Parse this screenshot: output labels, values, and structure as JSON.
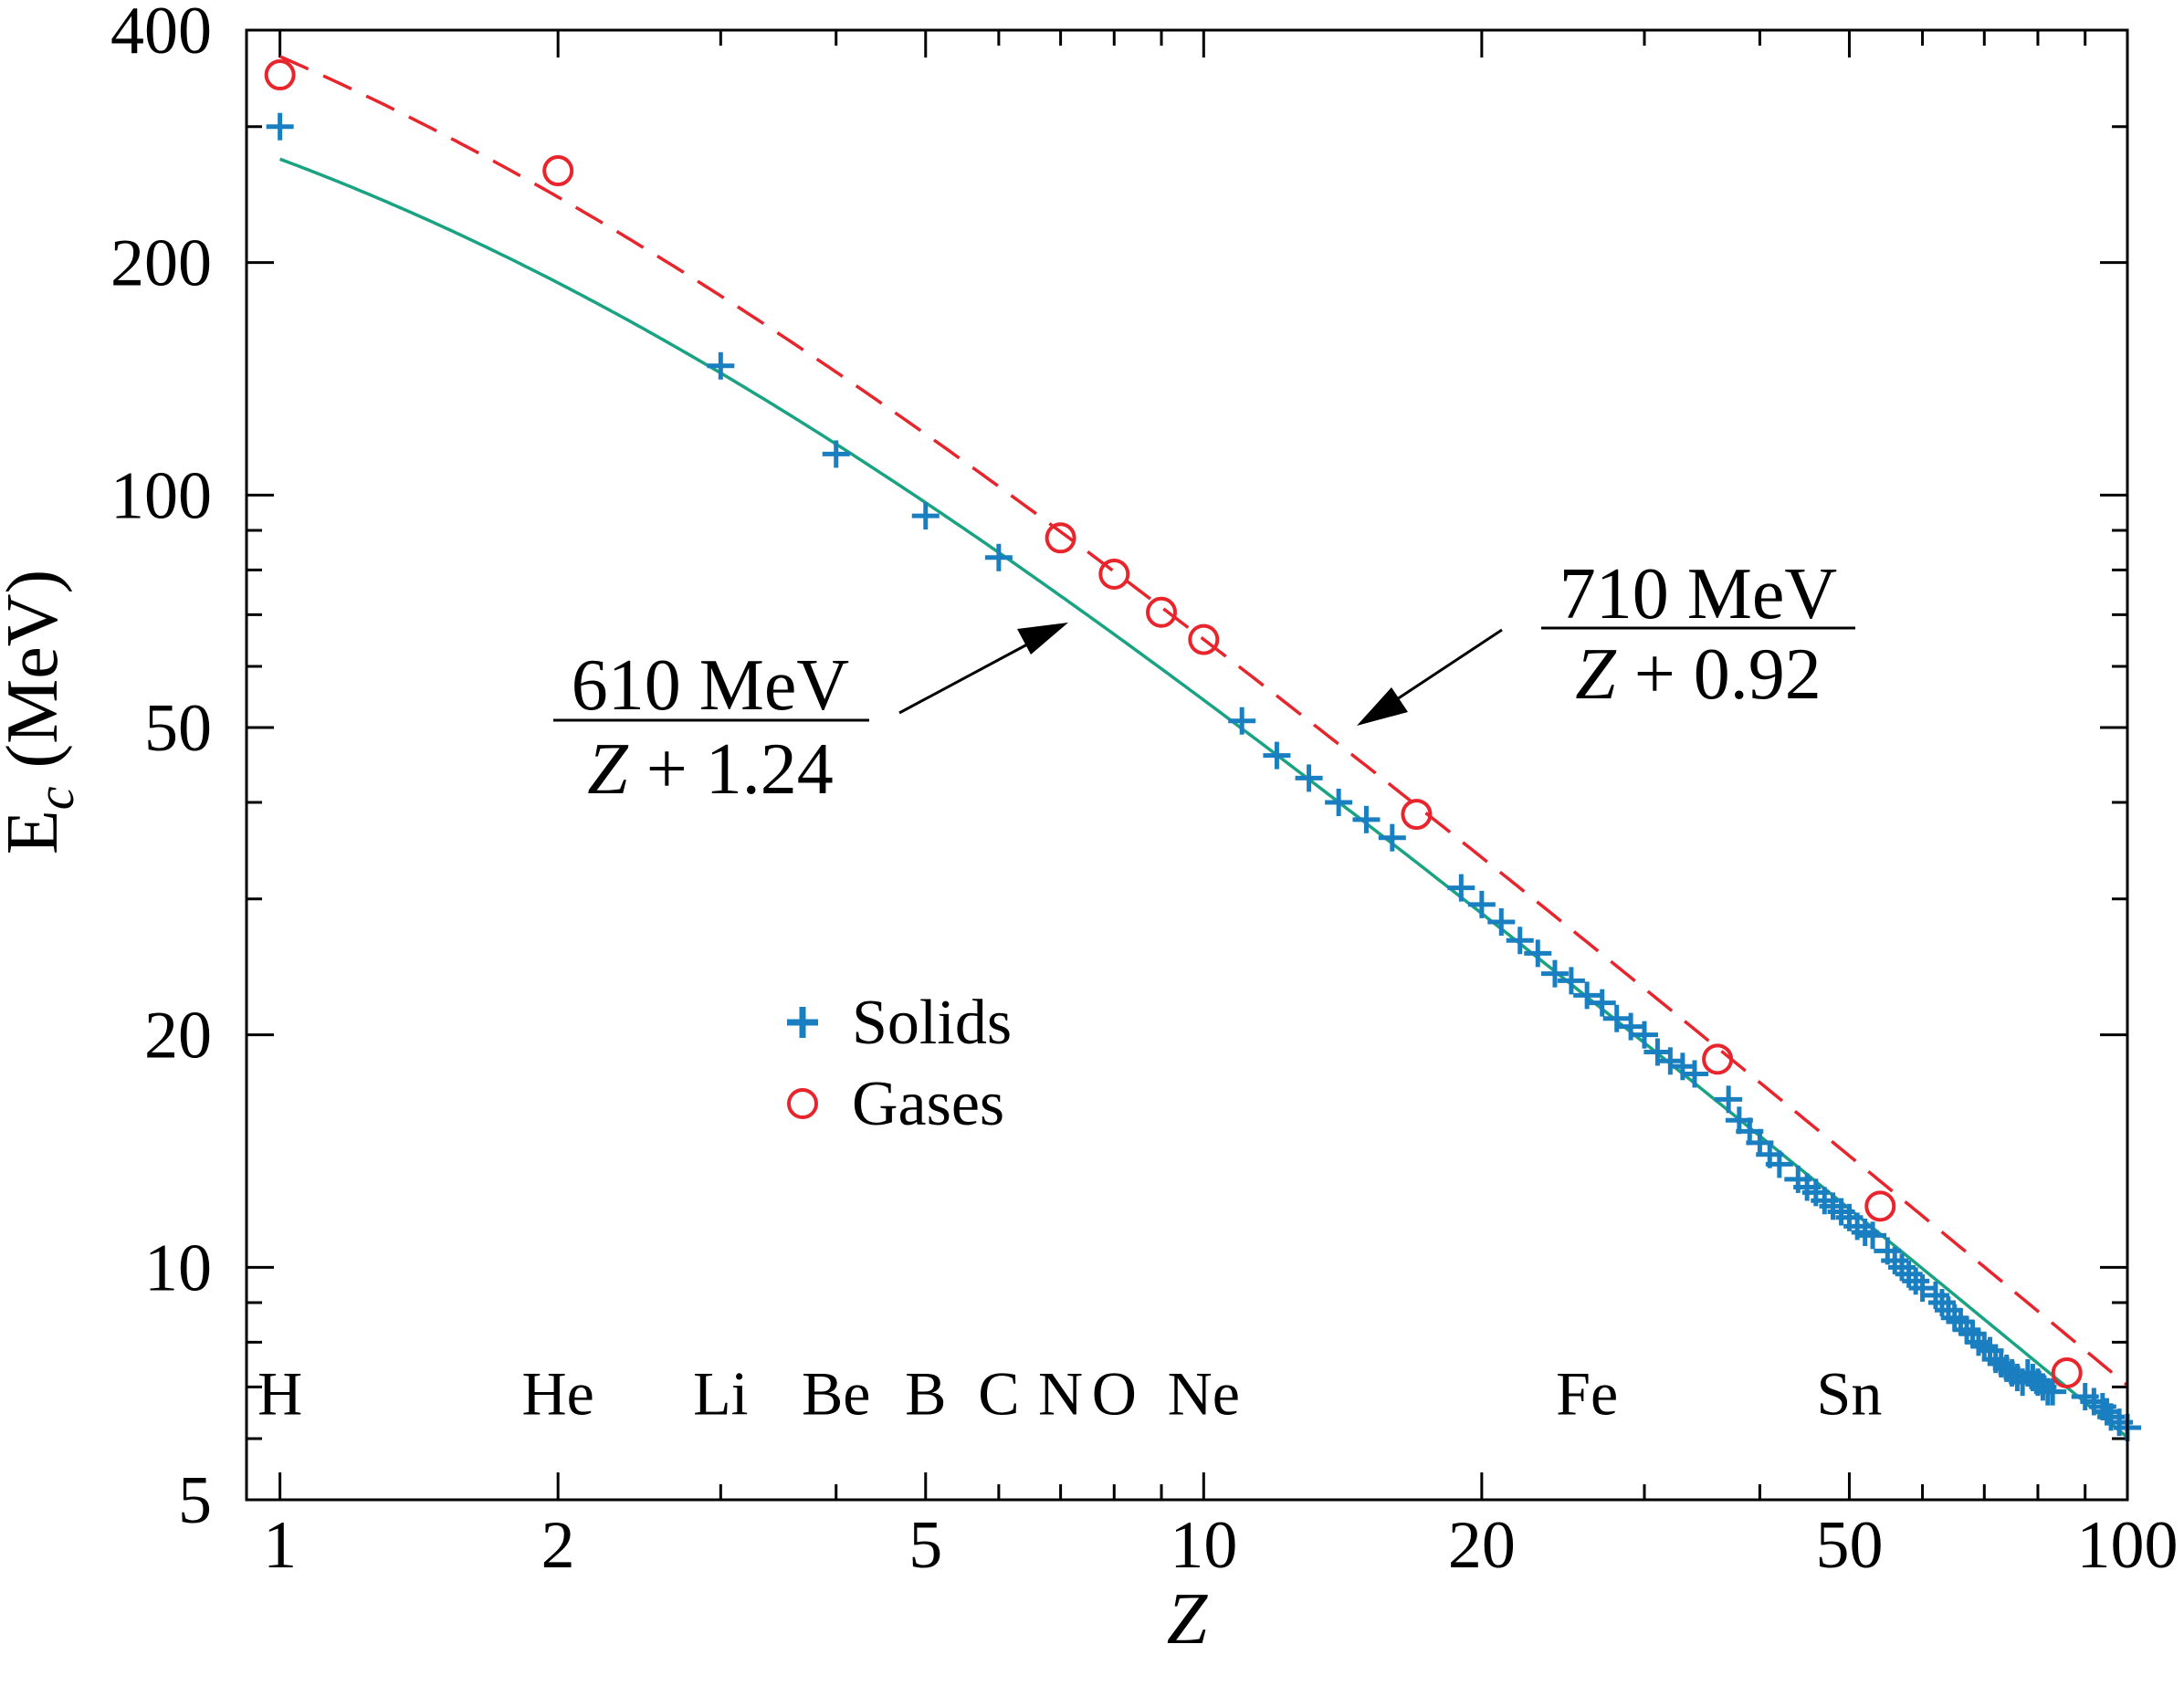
{
  "chart_data": {
    "type": "scatter",
    "xscale": "log",
    "yscale": "log",
    "xlim": [
      0.92,
      100
    ],
    "ylim": [
      5,
      400
    ],
    "xlabel": "Z",
    "ylabel": "E",
    "ylabel_sub": "c",
    "ylabel_unit": " (MeV)",
    "xticks": [
      {
        "value": 1,
        "label": "1"
      },
      {
        "value": 2,
        "label": "2"
      },
      {
        "value": 5,
        "label": "5"
      },
      {
        "value": 10,
        "label": "10"
      },
      {
        "value": 20,
        "label": "20"
      },
      {
        "value": 50,
        "label": "50"
      },
      {
        "value": 100,
        "label": "100"
      }
    ],
    "yticks": [
      {
        "value": 5,
        "label": "5"
      },
      {
        "value": 10,
        "label": "10"
      },
      {
        "value": 20,
        "label": "20"
      },
      {
        "value": 50,
        "label": "50"
      },
      {
        "value": 100,
        "label": "100"
      },
      {
        "value": 200,
        "label": "200"
      },
      {
        "value": 400,
        "label": "400"
      }
    ],
    "element_labels": [
      {
        "z": 1,
        "label": "H"
      },
      {
        "z": 2,
        "label": "He"
      },
      {
        "z": 3,
        "label": "Li"
      },
      {
        "z": 4,
        "label": "Be"
      },
      {
        "z": 5,
        "label": "B"
      },
      {
        "z": 6,
        "label": "C"
      },
      {
        "z": 7,
        "label": "N"
      },
      {
        "z": 8,
        "label": "O"
      },
      {
        "z": 10,
        "label": "Ne"
      },
      {
        "z": 26,
        "label": "Fe"
      },
      {
        "z": 50,
        "label": "Sn"
      }
    ],
    "element_label_y": 6.9,
    "fits": [
      {
        "name": "gases-fit",
        "numerator": 710,
        "offset": 0.92,
        "color": "#e8252c",
        "style": "dashed"
      },
      {
        "name": "solids-fit",
        "numerator": 610,
        "offset": 1.24,
        "color": "#1aa383",
        "style": "solid"
      }
    ],
    "series": [
      {
        "name": "Solids",
        "marker": "plus",
        "color": "#1a7fc1",
        "points": [
          [
            1,
            300
          ],
          [
            3,
            147
          ],
          [
            4,
            113
          ],
          [
            5,
            94
          ],
          [
            6,
            83
          ],
          [
            11,
            51
          ],
          [
            12,
            46
          ],
          [
            13,
            43
          ],
          [
            14,
            40
          ],
          [
            15,
            38
          ],
          [
            16,
            36
          ],
          [
            19,
            31
          ],
          [
            20,
            29.5
          ],
          [
            21,
            28
          ],
          [
            22,
            26.5
          ],
          [
            23,
            25.5
          ],
          [
            24,
            24
          ],
          [
            25,
            23.5
          ],
          [
            26,
            22.5
          ],
          [
            27,
            22
          ],
          [
            28,
            21
          ],
          [
            29,
            20.5
          ],
          [
            30,
            20
          ],
          [
            31,
            19
          ],
          [
            32,
            18.5
          ],
          [
            33,
            18.2
          ],
          [
            34,
            17.8
          ],
          [
            37,
            16.5
          ],
          [
            38,
            15.5
          ],
          [
            39,
            15
          ],
          [
            40,
            14.5
          ],
          [
            41,
            14
          ],
          [
            42,
            13.6
          ],
          [
            44,
            13
          ],
          [
            45,
            12.7
          ],
          [
            46,
            12.5
          ],
          [
            47,
            12.2
          ],
          [
            48,
            12
          ],
          [
            49,
            11.8
          ],
          [
            50,
            11.6
          ],
          [
            51,
            11.3
          ],
          [
            52,
            11.1
          ],
          [
            53,
            11
          ],
          [
            55,
            10.5
          ],
          [
            56,
            10.2
          ],
          [
            57,
            10
          ],
          [
            58,
            9.8
          ],
          [
            59,
            9.6
          ],
          [
            60,
            9.4
          ],
          [
            62,
            9.2
          ],
          [
            63,
            9
          ],
          [
            64,
            8.8
          ],
          [
            65,
            8.6
          ],
          [
            66,
            8.5
          ],
          [
            67,
            8.3
          ],
          [
            68,
            8.2
          ],
          [
            69,
            8
          ],
          [
            70,
            7.9
          ],
          [
            71,
            7.8
          ],
          [
            72,
            7.6
          ],
          [
            73,
            7.5
          ],
          [
            74,
            7.4
          ],
          [
            75,
            7.3
          ],
          [
            76,
            7.2
          ],
          [
            77,
            7.1
          ],
          [
            78,
            7.3
          ],
          [
            79,
            7.2
          ],
          [
            80,
            7.1
          ],
          [
            81,
            7
          ],
          [
            82,
            6.9
          ],
          [
            83,
            6.9
          ],
          [
            90,
            6.8
          ],
          [
            92,
            6.7
          ],
          [
            94,
            6.6
          ],
          [
            95,
            6.5
          ],
          [
            96,
            6.4
          ],
          [
            98,
            6.3
          ],
          [
            100,
            6.2
          ]
        ]
      },
      {
        "name": "Gases",
        "marker": "circle",
        "color": "#e8252c",
        "points": [
          [
            1,
            350
          ],
          [
            2,
            263
          ],
          [
            7,
            88
          ],
          [
            8,
            79
          ],
          [
            9,
            70.5
          ],
          [
            10,
            65
          ],
          [
            17,
            38.6
          ],
          [
            36,
            18.6
          ],
          [
            54,
            12
          ],
          [
            86,
            7.3
          ]
        ]
      }
    ],
    "legend": [
      {
        "label": "Solids",
        "marker": "plus"
      },
      {
        "label": "Gases",
        "marker": "circle"
      }
    ],
    "annotations": [
      {
        "name": "solids-formula",
        "numerator": "610 MeV",
        "denominator_var": "Z",
        "denominator_rest": " + 1.24",
        "points_to": [
          7,
          71
        ]
      },
      {
        "name": "gases-formula",
        "numerator": "710 MeV",
        "denominator_var": "Z",
        "denominator_rest": " + 0.92",
        "points_to": [
          14,
          47.7
        ]
      }
    ]
  }
}
